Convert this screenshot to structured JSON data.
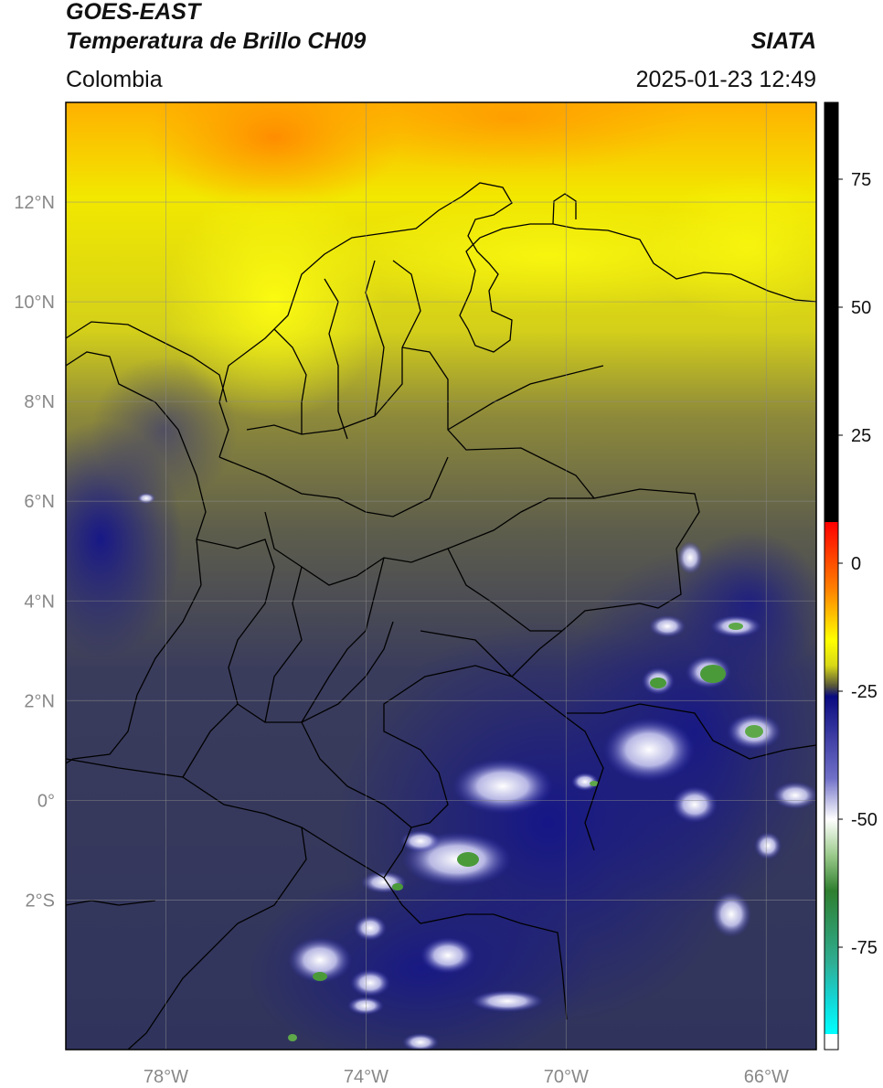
{
  "header": {
    "title_line1": "GOES-EAST",
    "title_line2": "Temperatura de Brillo CH09",
    "organization": "SIATA",
    "region": "Colombia",
    "datetime": "2025-01-23 12:49"
  },
  "map": {
    "lon_range": [
      -80,
      -65
    ],
    "lat_range": [
      -5,
      14
    ],
    "lat_ticks": [
      {
        "value": 12,
        "label": "12°N"
      },
      {
        "value": 10,
        "label": "10°N"
      },
      {
        "value": 8,
        "label": "8°N"
      },
      {
        "value": 6,
        "label": "6°N"
      },
      {
        "value": 4,
        "label": "4°N"
      },
      {
        "value": 2,
        "label": "2°N"
      },
      {
        "value": 0,
        "label": "0°"
      },
      {
        "value": -2,
        "label": "2°S"
      }
    ],
    "lon_ticks": [
      {
        "value": -78,
        "label": "78°W"
      },
      {
        "value": -74,
        "label": "74°W"
      },
      {
        "value": -70,
        "label": "70°W"
      },
      {
        "value": -66,
        "label": "66°W"
      }
    ],
    "grid": true
  },
  "colorbar": {
    "range": [
      -95,
      90
    ],
    "ticks": [
      {
        "value": 75,
        "label": "75"
      },
      {
        "value": 50,
        "label": "50"
      },
      {
        "value": 25,
        "label": "25"
      },
      {
        "value": 0,
        "label": "0"
      },
      {
        "value": -25,
        "label": "-25"
      },
      {
        "value": -50,
        "label": "-50"
      },
      {
        "value": -75,
        "label": "-75"
      }
    ],
    "stops": [
      {
        "value": 90,
        "color": "#000000"
      },
      {
        "value": 8,
        "color": "#000000"
      },
      {
        "value": 8,
        "color": "#ff0000"
      },
      {
        "value": -5,
        "color": "#ff8000"
      },
      {
        "value": -15,
        "color": "#ffff00"
      },
      {
        "value": -20,
        "color": "#d8d818"
      },
      {
        "value": -24,
        "color": "#55553a"
      },
      {
        "value": -26,
        "color": "#0a0a80"
      },
      {
        "value": -42,
        "color": "#7070c8"
      },
      {
        "value": -50,
        "color": "#ffffff"
      },
      {
        "value": -57,
        "color": "#9ccb8c"
      },
      {
        "value": -64,
        "color": "#2f7f2f"
      },
      {
        "value": -78,
        "color": "#2fae93"
      },
      {
        "value": -85,
        "color": "#14d4d4"
      },
      {
        "value": -92,
        "color": "#00ffff"
      },
      {
        "value": -92,
        "color": "#ffffff"
      },
      {
        "value": -95,
        "color": "#ffffff"
      }
    ]
  }
}
